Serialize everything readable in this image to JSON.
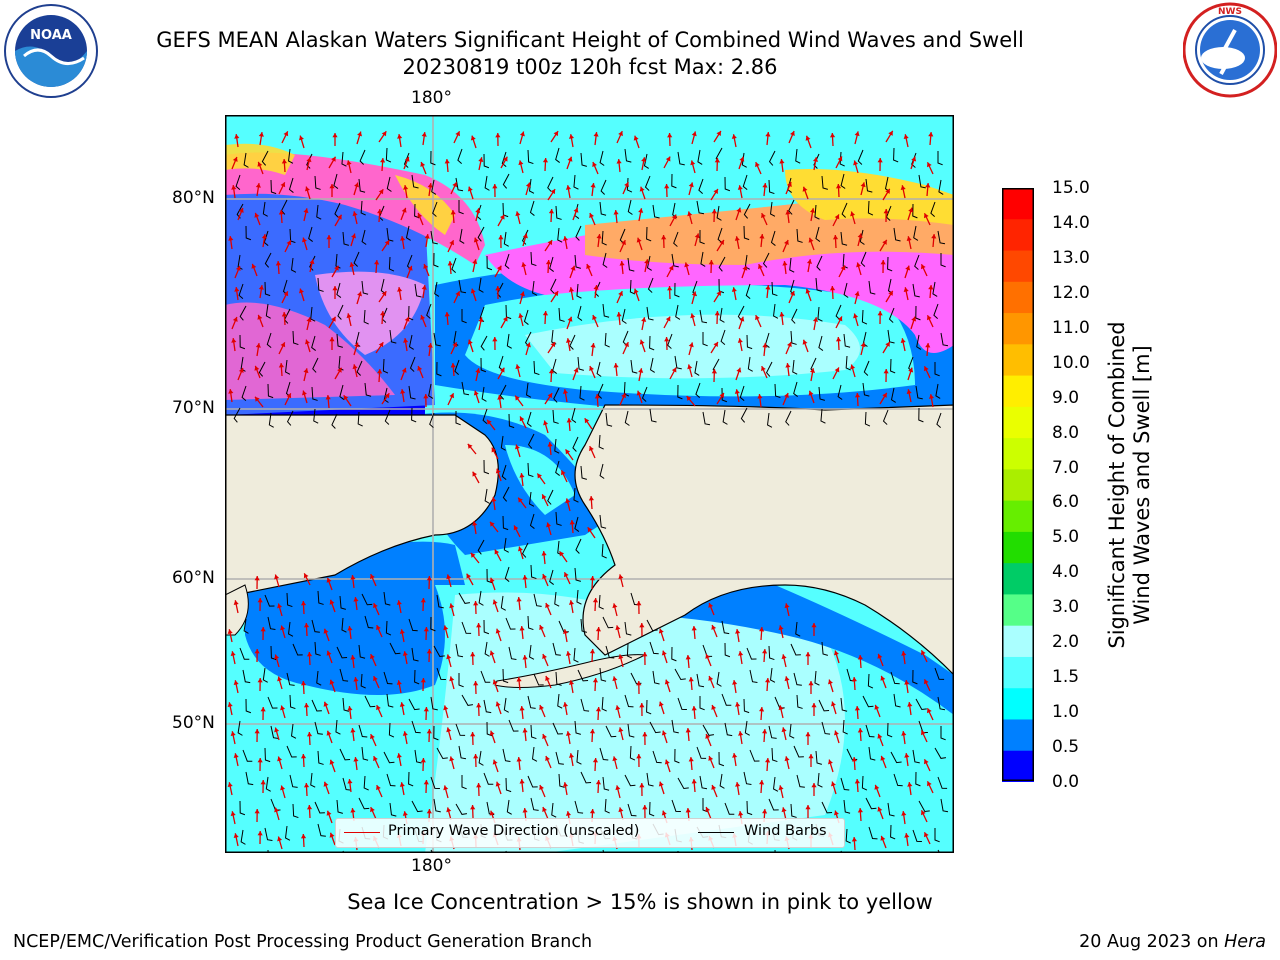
{
  "header": {
    "title_line1": "GEFS MEAN Alaskan Waters Significant Height of Combined Wind Waves and Swell",
    "title_line2": "20230819 t00z 120h fcst   Max: 2.86"
  },
  "logos": {
    "left": {
      "name": "noaa-logo",
      "text": "NOAA",
      "ring_text": "NATIONAL OCEANIC AND ATMOSPHERIC ADMINISTRATION · U.S. DEPARTMENT OF COMMERCE"
    },
    "right": {
      "name": "nws-logo",
      "ring_text": "NATIONAL WEATHER SERVICE"
    }
  },
  "map": {
    "lon_labels": [
      "180°",
      "180°"
    ],
    "lat_labels": [
      "80°N",
      "70°N",
      "60°N",
      "50°N"
    ]
  },
  "legend": {
    "wave_label": "Primary Wave Direction (unscaled)",
    "wind_label": "Wind Barbs",
    "wave_color": "#e00000",
    "wind_color": "#000000"
  },
  "colorbar": {
    "title": "Significant Height of Combined Wind Waves and Swell [m]",
    "title_line1": "Significant Height of Combined",
    "title_line2": "Wind Waves and Swell [m]",
    "ticks": [
      "15.0",
      "14.0",
      "13.0",
      "12.0",
      "11.0",
      "10.0",
      "9.0",
      "8.0",
      "7.0",
      "6.0",
      "5.0",
      "4.0",
      "3.0",
      "2.0",
      "1.5",
      "1.0",
      "0.5",
      "0.0"
    ],
    "colors_top_to_bottom": [
      "#ff0000",
      "#ff2400",
      "#ff4800",
      "#ff7000",
      "#ff9600",
      "#ffbe00",
      "#ffee00",
      "#eaff00",
      "#ccff00",
      "#aaee00",
      "#66ee00",
      "#22dd00",
      "#00cc66",
      "#55ff88",
      "#aaffff",
      "#55ffff",
      "#00ffff",
      "#0080ff",
      "#0000ff"
    ]
  },
  "caption": "Sea Ice Concentration > 15% is shown in pink to yellow",
  "footer": {
    "left": "NCEP/EMC/Verification Post Processing Product Generation Branch",
    "right_prefix": "20 Aug 2023 on ",
    "right_italic": "Hera"
  }
}
